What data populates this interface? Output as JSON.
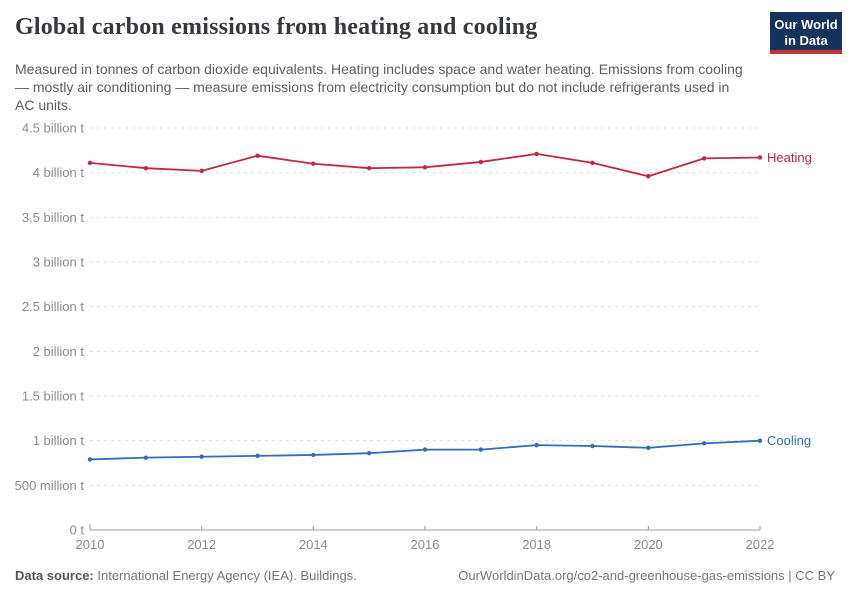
{
  "header": {
    "title": "Global carbon emissions from heating and cooling",
    "subtitle": "Measured in tonnes of carbon dioxide equivalents. Heating includes space and water heating. Emissions from cooling — mostly air conditioning — measure emissions from electricity consumption but do not include refrigerants used in AC units.",
    "logo": {
      "line1": "Our World",
      "line2": "in Data"
    }
  },
  "colors": {
    "heating": "#C4273F",
    "cooling": "#2E6EBE",
    "grid": "#dedede",
    "axis": "#9e9e9e",
    "tick_text": "#8b8b8b",
    "logo_navy": "#14335c",
    "logo_red": "#c4323a"
  },
  "chart_data": {
    "type": "line",
    "title": "Global carbon emissions from heating and cooling",
    "xlabel": "",
    "ylabel": "",
    "grid": true,
    "legend_position": "end-of-line-labels",
    "x": [
      2010,
      2011,
      2012,
      2013,
      2014,
      2015,
      2016,
      2017,
      2018,
      2019,
      2020,
      2021,
      2022
    ],
    "xticks": [
      2010,
      2012,
      2014,
      2016,
      2018,
      2020,
      2022
    ],
    "ylim": [
      0,
      4.5
    ],
    "yticks": [
      {
        "value": 0,
        "label": "0 t"
      },
      {
        "value": 0.5,
        "label": "500 million t"
      },
      {
        "value": 1,
        "label": "1 billion t"
      },
      {
        "value": 1.5,
        "label": "1.5 billion t"
      },
      {
        "value": 2,
        "label": "2 billion t"
      },
      {
        "value": 2.5,
        "label": "2.5 billion t"
      },
      {
        "value": 3,
        "label": "3 billion t"
      },
      {
        "value": 3.5,
        "label": "3.5 billion t"
      },
      {
        "value": 4,
        "label": "4 billion t"
      },
      {
        "value": 4.5,
        "label": "4.5 billion t"
      }
    ],
    "value_unit_note": "billion tonnes CO2-eq",
    "series": [
      {
        "name": "Heating",
        "color": "#C4273F",
        "values": [
          4.11,
          4.05,
          4.02,
          4.19,
          4.1,
          4.05,
          4.06,
          4.12,
          4.21,
          4.11,
          3.96,
          4.16,
          4.17
        ]
      },
      {
        "name": "Cooling",
        "color": "#2E6EBE",
        "values": [
          0.79,
          0.81,
          0.82,
          0.83,
          0.84,
          0.86,
          0.9,
          0.9,
          0.95,
          0.94,
          0.92,
          0.97,
          1.0
        ]
      }
    ]
  },
  "footer": {
    "datasource_label": "Data source:",
    "datasource_text": " International Energy Agency (IEA). Buildings.",
    "link_text": "OurWorldinData.org/co2-and-greenhouse-gas-emissions | CC BY"
  }
}
